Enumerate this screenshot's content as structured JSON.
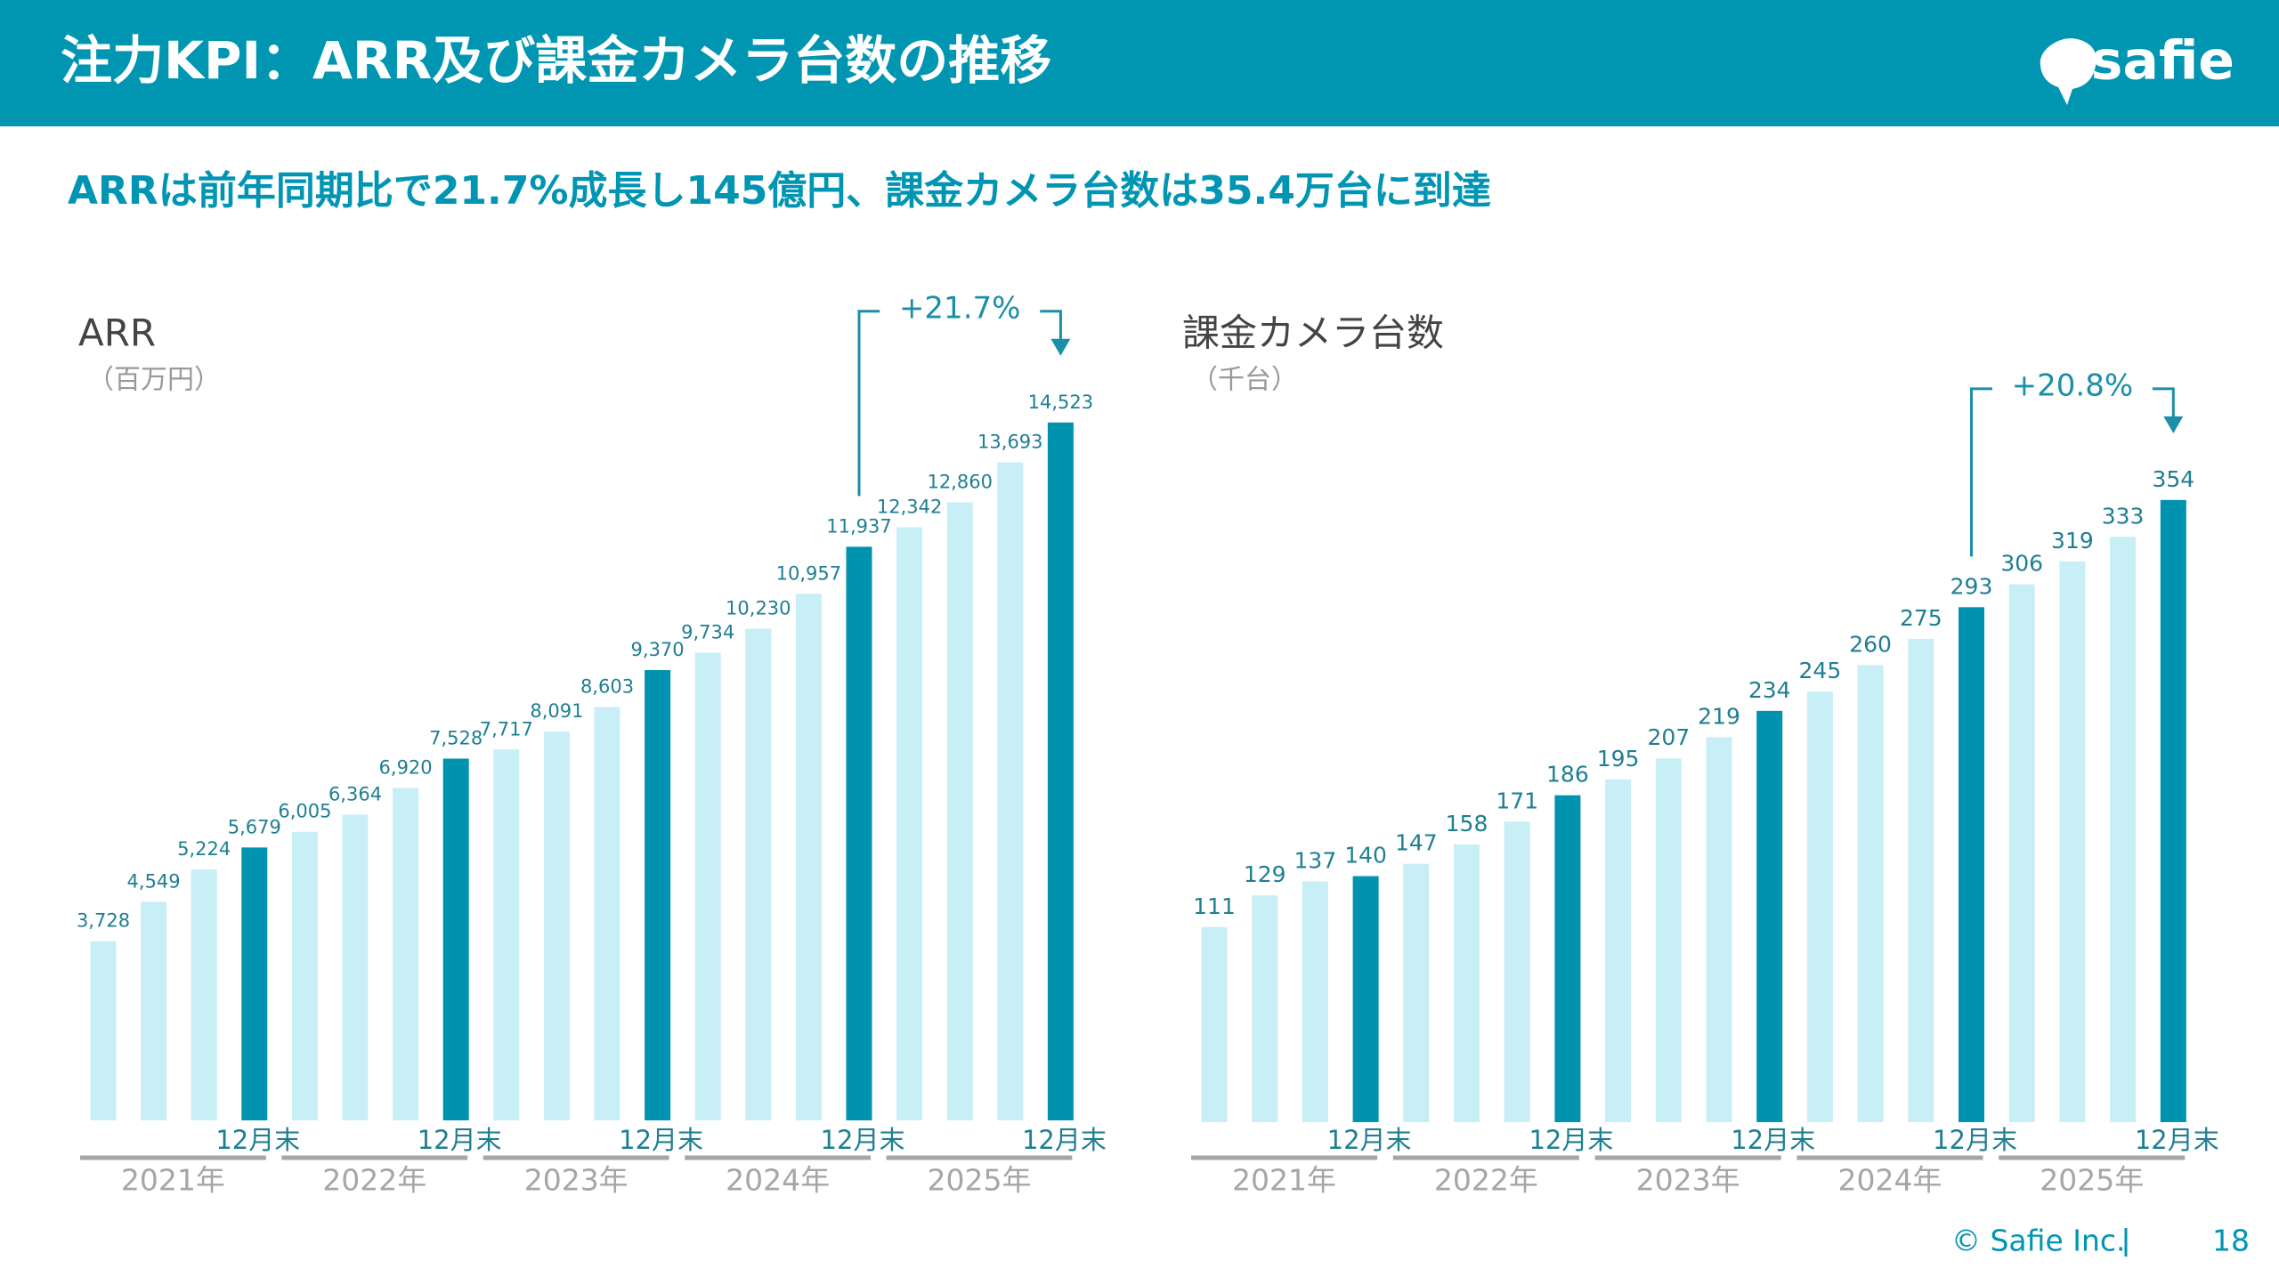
{
  "header": {
    "title": "注力KPI：ARR及び課金カメラ台数の推移",
    "logo": "safie"
  },
  "headline": "ARRは前年同期比で21.7%成長し145億円、課金カメラ台数は35.4万台に到達",
  "chart_data": [
    {
      "type": "bar",
      "title": "ARR",
      "subtitle": "（百万円）",
      "categories": [
        null,
        null,
        null,
        "12月末",
        null,
        null,
        null,
        "12月末",
        null,
        null,
        null,
        "12月末",
        null,
        null,
        null,
        "12月末",
        null,
        null,
        null,
        "12月末"
      ],
      "values": [
        3728,
        4549,
        5224,
        5679,
        6005,
        6364,
        6920,
        7528,
        7717,
        8091,
        8603,
        9370,
        9734,
        10230,
        10957,
        11937,
        12342,
        12860,
        13693,
        14523
      ],
      "value_labels": [
        "3,728",
        "4,549",
        "5,224",
        "5,679",
        "6,005",
        "6,364",
        "6,920",
        "7,528",
        "7,717",
        "8,091",
        "8,603",
        "9,370",
        "9,734",
        "10,230",
        "10,957",
        "11,937",
        "12,342",
        "12,860",
        "13,693",
        "14,523"
      ],
      "groups": [
        "2021年",
        "2022年",
        "2023年",
        "2024年",
        "2025年"
      ],
      "color": "#c8eef6",
      "highlight_color": "#0093b0",
      "annotation": "+21.7%",
      "ylim": [
        0,
        16000
      ]
    },
    {
      "type": "bar",
      "title": "課金カメラ台数",
      "subtitle": "（千台）",
      "categories": [
        null,
        null,
        null,
        "12月末",
        null,
        null,
        null,
        "12月末",
        null,
        null,
        null,
        "12月末",
        null,
        null,
        null,
        "12月末",
        null,
        null,
        null,
        "12月末"
      ],
      "values": [
        111,
        129,
        137,
        140,
        147,
        158,
        171,
        186,
        195,
        207,
        219,
        234,
        245,
        260,
        275,
        293,
        306,
        319,
        333,
        354
      ],
      "groups": [
        "2021年",
        "2022年",
        "2023年",
        "2024年",
        "2025年"
      ],
      "color": "#c8eef6",
      "highlight_color": "#0093b0",
      "annotation": "+20.8%",
      "ylim": [
        0,
        400
      ]
    }
  ],
  "footer": {
    "copyright": "© Safie Inc.",
    "page": "18"
  }
}
